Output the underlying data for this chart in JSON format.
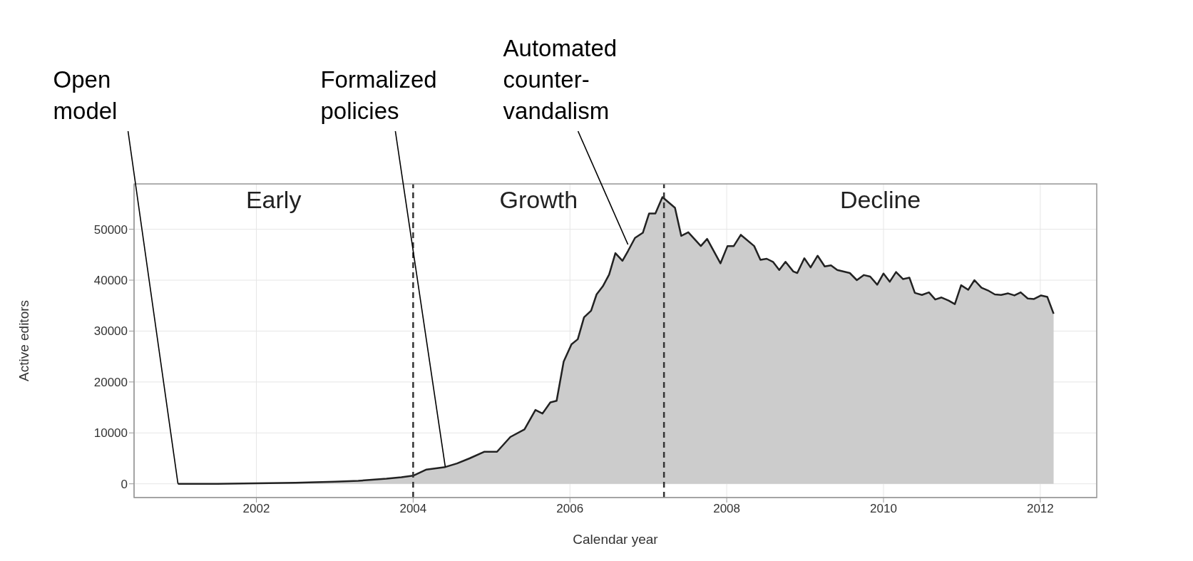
{
  "chart_data": {
    "type": "area",
    "xlabel": "Calendar year",
    "ylabel": "Active editors",
    "x": [
      2001.0,
      2001.5,
      2002.0,
      2002.5,
      2003.0,
      2003.3,
      2003.66,
      2003.85,
      2004.0,
      2004.17,
      2004.41,
      2004.56,
      2004.72,
      2004.91,
      2005.07,
      2005.24,
      2005.42,
      2005.56,
      2005.65,
      2005.75,
      2005.83,
      2005.92,
      2006.02,
      2006.1,
      2006.18,
      2006.27,
      2006.34,
      2006.42,
      2006.5,
      2006.58,
      2006.67,
      2006.74,
      2006.83,
      2006.93,
      2007.01,
      2007.09,
      2007.18,
      2007.34,
      2007.42,
      2007.51,
      2007.67,
      2007.75,
      2007.92,
      2008.01,
      2008.09,
      2008.18,
      2008.35,
      2008.43,
      2008.51,
      2008.59,
      2008.67,
      2008.75,
      2008.85,
      2008.9,
      2008.99,
      2009.07,
      2009.16,
      2009.25,
      2009.33,
      2009.41,
      2009.57,
      2009.66,
      2009.75,
      2009.83,
      2009.92,
      2010.0,
      2010.08,
      2010.16,
      2010.25,
      2010.33,
      2010.4,
      2010.49,
      2010.58,
      2010.66,
      2010.74,
      2010.83,
      2010.91,
      2010.99,
      2011.08,
      2011.16,
      2011.25,
      2011.33,
      2011.42,
      2011.5,
      2011.59,
      2011.67,
      2011.75,
      2011.84,
      2011.92,
      2012.01,
      2012.09,
      2012.17
    ],
    "series": [
      {
        "color": "#cccccc",
        "values": [
          0,
          0,
          100,
          200,
          400,
          600,
          1000,
          1300,
          1600,
          2800,
          3300,
          4000,
          5000,
          6300,
          6300,
          9200,
          10700,
          14500,
          13800,
          16000,
          16300,
          24000,
          27400,
          28400,
          32700,
          34000,
          37200,
          38800,
          41100,
          45300,
          43800,
          45700,
          48300,
          49300,
          53100,
          53100,
          56300,
          54200,
          48700,
          49400,
          46700,
          48100,
          43300,
          46700,
          46700,
          48900,
          46700,
          44000,
          44200,
          43600,
          42000,
          43600,
          41700,
          41400,
          44300,
          42500,
          44800,
          42700,
          42900,
          42000,
          41400,
          40000,
          41000,
          40700,
          39100,
          41300,
          39700,
          41600,
          40200,
          40500,
          37500,
          37100,
          37600,
          36200,
          36600,
          36000,
          35300,
          39000,
          38100,
          40000,
          38500,
          38000,
          37200,
          37100,
          37400,
          37000,
          37600,
          36400,
          36300,
          37000,
          36700,
          33400
        ]
      }
    ],
    "xlim": [
      2000.44,
      2012.72
    ],
    "xticks": [
      2002,
      2004,
      2006,
      2008,
      2010,
      2012
    ],
    "ylim": [
      -2700,
      58900
    ],
    "yticks": [
      0,
      10000,
      20000,
      30000,
      40000,
      50000
    ],
    "grid": true,
    "ref_lines": [
      {
        "axis": "x",
        "value": 2004.0,
        "line_style": "dashed",
        "color": "#333333"
      },
      {
        "axis": "x",
        "value": 2007.2,
        "line_style": "dashed",
        "color": "#333333"
      }
    ],
    "annotations": [
      "Early",
      "Growth",
      "Decline",
      {
        "text": "Open model",
        "x": 2001.0,
        "y": 0
      },
      {
        "text": "Formalized policies",
        "x": 2004.41,
        "y": 3300
      },
      {
        "text": "Automated counter-vandalism",
        "x": 2006.74,
        "y": 47000
      }
    ]
  }
}
